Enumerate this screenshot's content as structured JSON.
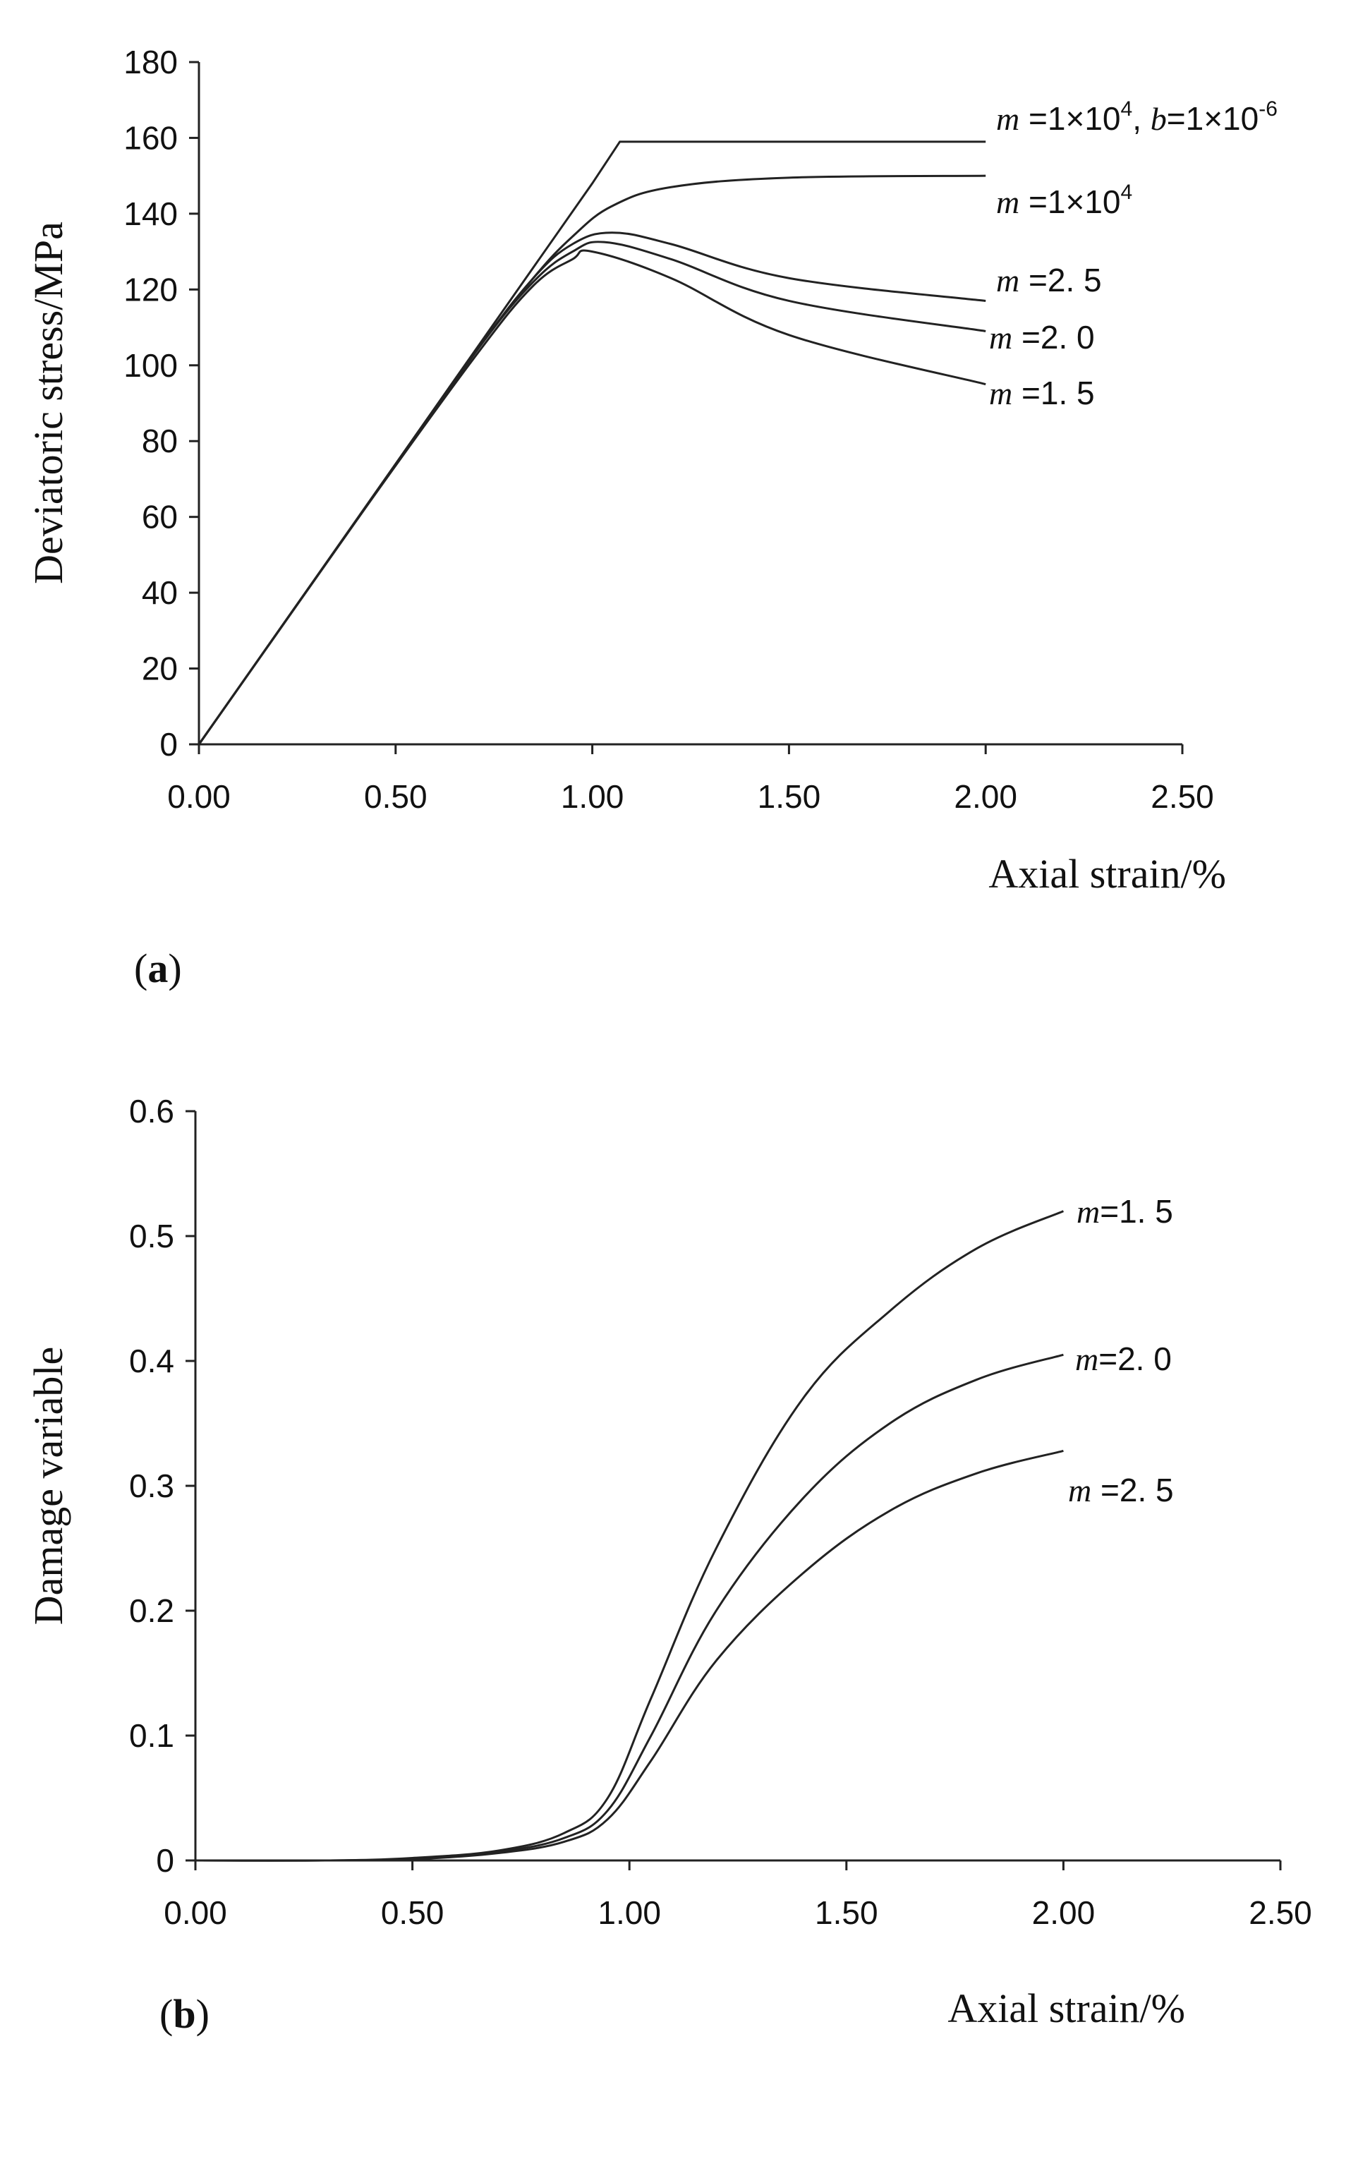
{
  "chart_data": [
    {
      "type": "line",
      "panel_label": "(a)",
      "xlabel": "Axial strain/%",
      "ylabel": "Deviatoric stress/MPa",
      "xlim": [
        0,
        2.5
      ],
      "ylim": [
        0,
        180
      ],
      "x_ticks": [
        "0.00",
        "0.50",
        "1.00",
        "1.50",
        "2.00",
        "2.50"
      ],
      "y_ticks": [
        "0",
        "20",
        "40",
        "60",
        "80",
        "100",
        "120",
        "140",
        "160",
        "180"
      ],
      "series": [
        {
          "name": "m =1×10^4, b=1×10^-6",
          "label_parts": [
            "m",
            " =1×10",
            "4",
            ", ",
            "b",
            "=1×10",
            "-6"
          ],
          "x": [
            0,
            0.5,
            1.0,
            1.07,
            1.5,
            2.0
          ],
          "y": [
            0,
            74,
            148,
            159,
            159,
            159
          ]
        },
        {
          "name": "m =1×10^4",
          "label_parts": [
            "m",
            " =1×10",
            "4"
          ],
          "x": [
            0,
            0.4,
            0.7,
            0.85,
            0.95,
            1.05,
            1.2,
            1.5,
            2.0
          ],
          "y": [
            0,
            59,
            103,
            123,
            134,
            142,
            147,
            149.5,
            150
          ]
        },
        {
          "name": "m =2.5",
          "label_parts": [
            "m",
            " =2. 5"
          ],
          "x": [
            0,
            0.4,
            0.7,
            0.85,
            0.95,
            1.05,
            1.2,
            1.5,
            2.0
          ],
          "y": [
            0,
            59,
            103,
            123,
            132,
            135,
            132,
            123,
            117
          ]
        },
        {
          "name": "m =2.0",
          "label_parts": [
            "m",
            " =2. 0"
          ],
          "x": [
            0,
            0.4,
            0.7,
            0.85,
            0.95,
            1.03,
            1.2,
            1.5,
            2.0
          ],
          "y": [
            0,
            59,
            103,
            122,
            130,
            132.5,
            128,
            117,
            109
          ]
        },
        {
          "name": "m =1.5",
          "label_parts": [
            "m",
            " =1. 5"
          ],
          "x": [
            0,
            0.4,
            0.7,
            0.85,
            0.95,
            1.0,
            1.2,
            1.5,
            2.0
          ],
          "y": [
            0,
            59,
            102,
            121,
            128,
            130,
            123,
            108,
            95
          ]
        }
      ]
    },
    {
      "type": "line",
      "panel_label": "(b)",
      "xlabel": "Axial strain/%",
      "ylabel": "Damage variable",
      "xlim": [
        0,
        2.5
      ],
      "ylim": [
        0,
        0.6
      ],
      "x_ticks": [
        "0.00",
        "0.50",
        "1.00",
        "1.50",
        "2.00",
        "2.50"
      ],
      "y_ticks": [
        "0",
        "0.1",
        "0.2",
        "0.3",
        "0.4",
        "0.5",
        "0.6"
      ],
      "series": [
        {
          "name": "m=1.5",
          "label_parts": [
            "m",
            "=1. 5"
          ],
          "x": [
            0,
            0.3,
            0.5,
            0.7,
            0.85,
            0.95,
            1.05,
            1.2,
            1.4,
            1.6,
            1.8,
            2.0
          ],
          "y": [
            0,
            0,
            0.002,
            0.008,
            0.022,
            0.05,
            0.13,
            0.25,
            0.37,
            0.44,
            0.49,
            0.52
          ]
        },
        {
          "name": "m=2.0",
          "label_parts": [
            "m",
            "=2. 0"
          ],
          "x": [
            0,
            0.3,
            0.5,
            0.7,
            0.85,
            0.95,
            1.05,
            1.2,
            1.4,
            1.6,
            1.8,
            2.0
          ],
          "y": [
            0,
            0,
            0.001,
            0.007,
            0.018,
            0.04,
            0.1,
            0.2,
            0.29,
            0.35,
            0.385,
            0.405
          ]
        },
        {
          "name": "m=2.5",
          "label_parts": [
            "m",
            " =2. 5"
          ],
          "x": [
            0,
            0.3,
            0.5,
            0.7,
            0.85,
            0.95,
            1.05,
            1.2,
            1.4,
            1.6,
            1.8,
            2.0
          ],
          "y": [
            0,
            0,
            0.001,
            0.006,
            0.015,
            0.033,
            0.08,
            0.16,
            0.23,
            0.28,
            0.31,
            0.328
          ]
        },
        {
          "name": "baseline",
          "label_parts": [],
          "x": [
            0,
            2.0
          ],
          "y": [
            0,
            0
          ]
        }
      ]
    }
  ]
}
